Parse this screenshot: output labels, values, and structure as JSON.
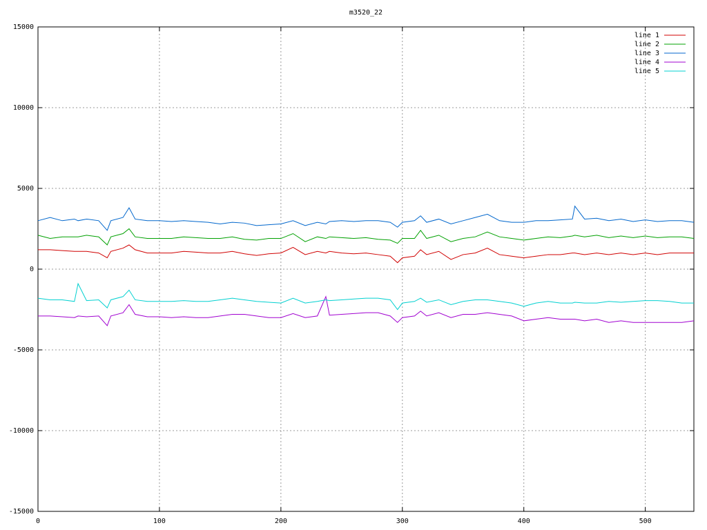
{
  "chart_data": {
    "type": "line",
    "title": "m3520_22",
    "x": [
      0,
      10,
      20,
      30,
      33,
      40,
      50,
      57,
      60,
      70,
      75,
      80,
      90,
      100,
      110,
      120,
      130,
      140,
      150,
      160,
      170,
      180,
      190,
      200,
      210,
      220,
      230,
      237,
      240,
      250,
      260,
      270,
      280,
      290,
      296,
      300,
      310,
      315,
      320,
      330,
      340,
      350,
      360,
      370,
      380,
      390,
      400,
      410,
      420,
      430,
      440,
      442,
      450,
      460,
      470,
      480,
      490,
      500,
      510,
      520,
      530,
      540
    ],
    "series": [
      {
        "name": "line 1",
        "color": "#d00000",
        "values": [
          1200,
          1200,
          1150,
          1100,
          1100,
          1100,
          1000,
          700,
          1100,
          1300,
          1500,
          1200,
          1000,
          1000,
          1000,
          1100,
          1050,
          1000,
          1000,
          1100,
          950,
          850,
          950,
          1000,
          1350,
          900,
          1100,
          1000,
          1100,
          1000,
          950,
          1000,
          900,
          800,
          400,
          700,
          800,
          1200,
          900,
          1100,
          600,
          900,
          1000,
          1300,
          900,
          800,
          700,
          800,
          900,
          900,
          1000,
          1000,
          900,
          1000,
          900,
          1000,
          900,
          1000,
          900,
          1000,
          1000,
          1000
        ]
      },
      {
        "name": "line 2",
        "color": "#00a000",
        "values": [
          2100,
          1900,
          2000,
          2000,
          2000,
          2100,
          2000,
          1500,
          2000,
          2200,
          2500,
          2000,
          1900,
          1900,
          1900,
          2000,
          1950,
          1900,
          1900,
          2000,
          1850,
          1800,
          1900,
          1900,
          2200,
          1700,
          2000,
          1900,
          2000,
          1950,
          1900,
          1950,
          1850,
          1800,
          1600,
          1900,
          1900,
          2400,
          1900,
          2100,
          1700,
          1900,
          2000,
          2300,
          2000,
          1900,
          1800,
          1900,
          2000,
          1950,
          2050,
          2100,
          2000,
          2100,
          1950,
          2050,
          1950,
          2050,
          1950,
          2000,
          2000,
          1900
        ]
      },
      {
        "name": "line 3",
        "color": "#0066cc",
        "values": [
          3000,
          3200,
          3000,
          3100,
          3000,
          3100,
          3000,
          2400,
          3000,
          3200,
          3800,
          3100,
          3000,
          3000,
          2950,
          3000,
          2950,
          2900,
          2800,
          2900,
          2850,
          2700,
          2750,
          2800,
          3000,
          2700,
          2900,
          2800,
          2950,
          3000,
          2950,
          3000,
          3000,
          2900,
          2600,
          2900,
          3000,
          3300,
          2900,
          3100,
          2800,
          3000,
          3200,
          3400,
          3000,
          2900,
          2900,
          3000,
          3000,
          3050,
          3100,
          3900,
          3100,
          3150,
          3000,
          3100,
          2950,
          3050,
          2950,
          3000,
          3000,
          2900
        ]
      },
      {
        "name": "line 4",
        "color": "#a000d0",
        "values": [
          -2900,
          -2900,
          -2950,
          -3000,
          -2900,
          -2950,
          -2900,
          -3500,
          -2900,
          -2700,
          -2200,
          -2800,
          -2950,
          -2950,
          -3000,
          -2950,
          -3000,
          -3000,
          -2900,
          -2800,
          -2800,
          -2900,
          -3000,
          -3000,
          -2750,
          -3000,
          -2900,
          -1700,
          -2850,
          -2800,
          -2750,
          -2700,
          -2700,
          -2900,
          -3300,
          -3000,
          -2900,
          -2600,
          -2900,
          -2700,
          -3000,
          -2800,
          -2800,
          -2700,
          -2800,
          -2900,
          -3200,
          -3100,
          -3000,
          -3100,
          -3100,
          -3100,
          -3200,
          -3100,
          -3300,
          -3200,
          -3300,
          -3300,
          -3300,
          -3300,
          -3300,
          -3200
        ]
      },
      {
        "name": "line 5",
        "color": "#00d0d0",
        "values": [
          -1800,
          -1900,
          -1900,
          -2000,
          -900,
          -1950,
          -1900,
          -2400,
          -1900,
          -1700,
          -1300,
          -1900,
          -2000,
          -2000,
          -2000,
          -1950,
          -2000,
          -2000,
          -1900,
          -1800,
          -1900,
          -2000,
          -2050,
          -2100,
          -1800,
          -2100,
          -2000,
          -1900,
          -1950,
          -1900,
          -1850,
          -1800,
          -1800,
          -1900,
          -2500,
          -2100,
          -2000,
          -1800,
          -2050,
          -1900,
          -2200,
          -2000,
          -1900,
          -1900,
          -2000,
          -2100,
          -2300,
          -2100,
          -2000,
          -2100,
          -2100,
          -2050,
          -2100,
          -2100,
          -2000,
          -2050,
          -2000,
          -1950,
          -1950,
          -2000,
          -2100,
          -2100
        ]
      }
    ],
    "xlim": [
      0,
      540
    ],
    "xticks": [
      0,
      100,
      200,
      300,
      400,
      500
    ],
    "ylim": [
      -15000,
      15000
    ],
    "yticks": [
      -15000,
      -10000,
      -5000,
      0,
      5000,
      10000,
      15000
    ],
    "grid": true,
    "legend": "top-right"
  }
}
